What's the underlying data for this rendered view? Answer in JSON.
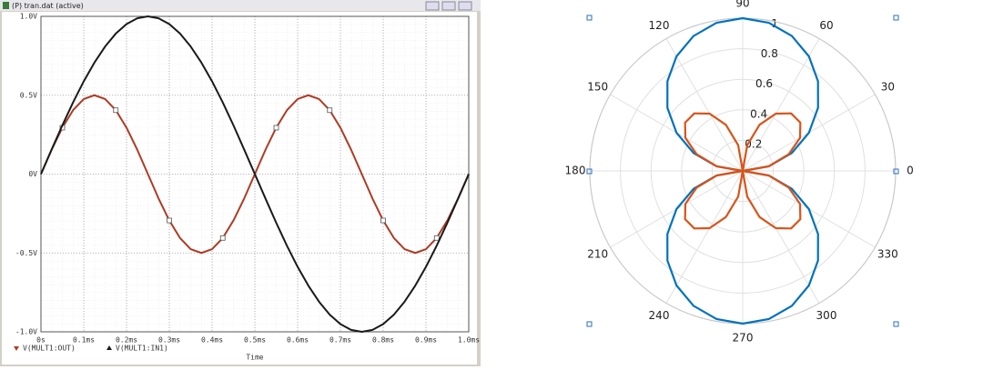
{
  "chart_data": [
    {
      "type": "line",
      "title": "(P) tran.dat (active)",
      "xlabel": "Time",
      "x": [
        0,
        0.025,
        0.05,
        0.075,
        0.1,
        0.125,
        0.15,
        0.175,
        0.2,
        0.225,
        0.25,
        0.275,
        0.3,
        0.325,
        0.35,
        0.375,
        0.4,
        0.425,
        0.45,
        0.475,
        0.5,
        0.525,
        0.55,
        0.575,
        0.6,
        0.625,
        0.65,
        0.675,
        0.7,
        0.725,
        0.75,
        0.775,
        0.8,
        0.825,
        0.85,
        0.875,
        0.9,
        0.925,
        0.95,
        0.975,
        1.0
      ],
      "series": [
        {
          "name": "V(MULT1:OUT)",
          "color": "#b03a22",
          "marker": "square",
          "values": [
            0,
            0.155,
            0.294,
            0.405,
            0.476,
            0.5,
            0.476,
            0.405,
            0.294,
            0.155,
            0,
            -0.155,
            -0.294,
            -0.405,
            -0.476,
            -0.5,
            -0.476,
            -0.405,
            -0.294,
            -0.155,
            0,
            0.155,
            0.294,
            0.405,
            0.476,
            0.5,
            0.476,
            0.405,
            0.294,
            0.155,
            0,
            -0.155,
            -0.294,
            -0.405,
            -0.476,
            -0.5,
            -0.476,
            -0.405,
            -0.294,
            -0.155,
            0
          ]
        },
        {
          "name": "V(MULT1:IN1)",
          "color": "#1a1a1a",
          "marker": "triangle",
          "values": [
            0,
            0.156,
            0.309,
            0.454,
            0.588,
            0.707,
            0.809,
            0.891,
            0.951,
            0.988,
            1,
            0.988,
            0.951,
            0.891,
            0.809,
            0.707,
            0.588,
            0.454,
            0.309,
            0.156,
            0,
            -0.156,
            -0.309,
            -0.454,
            -0.588,
            -0.707,
            -0.809,
            -0.891,
            -0.951,
            -0.988,
            -1,
            -0.988,
            -0.951,
            -0.891,
            -0.809,
            -0.707,
            -0.588,
            -0.454,
            -0.309,
            -0.156,
            0
          ]
        }
      ],
      "xlim": [
        0,
        1.0
      ],
      "xticks": [
        {
          "value": 0,
          "label": "0s"
        },
        {
          "value": 0.1,
          "label": "0.1ms"
        },
        {
          "value": 0.2,
          "label": "0.2ms"
        },
        {
          "value": 0.3,
          "label": "0.3ms"
        },
        {
          "value": 0.4,
          "label": "0.4ms"
        },
        {
          "value": 0.5,
          "label": "0.5ms"
        },
        {
          "value": 0.6,
          "label": "0.6ms"
        },
        {
          "value": 0.7,
          "label": "0.7ms"
        },
        {
          "value": 0.8,
          "label": "0.8ms"
        },
        {
          "value": 0.9,
          "label": "0.9ms"
        },
        {
          "value": 1.0,
          "label": "1.0ms"
        }
      ],
      "ylim": [
        -1,
        1
      ],
      "yticks": [
        {
          "value": -1,
          "label": "-1.0V"
        },
        {
          "value": -0.5,
          "label": "-0.5V"
        },
        {
          "value": 0,
          "label": "0V"
        },
        {
          "value": 0.5,
          "label": "0.5V"
        },
        {
          "value": 1,
          "label": "1.0V"
        }
      ],
      "grid": true
    },
    {
      "type": "polar",
      "theta": [
        0,
        10,
        20,
        30,
        40,
        50,
        60,
        70,
        80,
        90,
        100,
        110,
        120,
        130,
        140,
        150,
        160,
        170,
        180,
        190,
        200,
        210,
        220,
        230,
        240,
        250,
        260,
        270,
        280,
        290,
        300,
        310,
        320,
        330,
        340,
        350,
        360
      ],
      "series": [
        {
          "color": "#0072bd",
          "values": [
            0,
            0.174,
            0.342,
            0.5,
            0.643,
            0.766,
            0.866,
            0.94,
            0.985,
            1,
            0.985,
            0.94,
            0.866,
            0.766,
            0.643,
            0.5,
            0.342,
            0.174,
            0,
            0.174,
            0.342,
            0.5,
            0.643,
            0.766,
            0.866,
            0.94,
            0.985,
            1,
            0.985,
            0.94,
            0.866,
            0.766,
            0.643,
            0.5,
            0.342,
            0.174,
            0
          ]
        },
        {
          "color": "#d95319",
          "values": [
            0,
            0.171,
            0.321,
            0.433,
            0.492,
            0.492,
            0.433,
            0.321,
            0.171,
            0,
            0.171,
            0.321,
            0.433,
            0.492,
            0.492,
            0.433,
            0.321,
            0.171,
            0,
            0.171,
            0.321,
            0.433,
            0.492,
            0.492,
            0.433,
            0.321,
            0.171,
            0,
            0.171,
            0.321,
            0.433,
            0.492,
            0.492,
            0.433,
            0.321,
            0.171,
            0
          ]
        }
      ],
      "rlim": [
        0,
        1
      ],
      "rticks": [
        0.2,
        0.4,
        0.6,
        0.8,
        1
      ],
      "thetaticks": [
        0,
        30,
        60,
        90,
        120,
        150,
        180,
        210,
        240,
        270,
        300,
        330
      ],
      "grid": true
    }
  ]
}
